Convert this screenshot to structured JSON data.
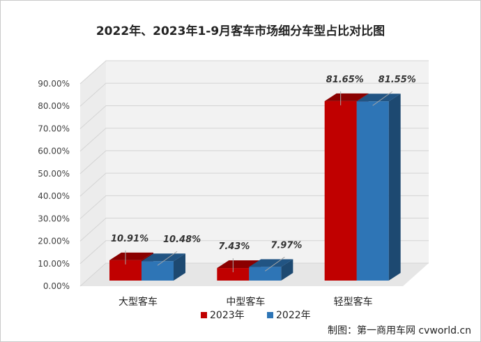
{
  "chart_data": {
    "type": "bar",
    "title": "2022年、2023年1-9月客车市场细分车型占比对比图",
    "categories": [
      "大型客车",
      "中型客车",
      "轻型客车"
    ],
    "series": [
      {
        "name": "2023年",
        "values": [
          10.91,
          7.43,
          81.65
        ],
        "labels": [
          "10.91%",
          "7.43%",
          "81.65%"
        ],
        "color": "#c00000"
      },
      {
        "name": "2022年",
        "values": [
          10.48,
          7.97,
          81.55
        ],
        "labels": [
          "10.48%",
          "7.97%",
          "81.55%"
        ],
        "color": "#2e75b6"
      }
    ],
    "ylim": [
      0,
      90
    ],
    "yticks": [
      "0.00%",
      "10.00%",
      "20.00%",
      "30.00%",
      "40.00%",
      "50.00%",
      "60.00%",
      "70.00%",
      "80.00%",
      "90.00%"
    ],
    "grid": true,
    "legend": "bottom-center",
    "style": "3d-bar"
  },
  "credit": "制图：第一商用车网 cvworld.cn"
}
